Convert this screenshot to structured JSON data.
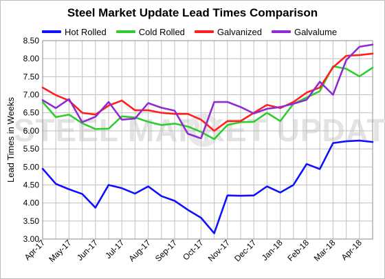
{
  "chart_data": {
    "type": "line",
    "title": "Steel Market Update Lead Times Comparison",
    "xlabel": "",
    "ylabel": "Lead Times in Weeks",
    "ylim": [
      3.0,
      8.5
    ],
    "yticks": [
      "3.00",
      "3.50",
      "4.00",
      "4.50",
      "5.00",
      "5.50",
      "6.00",
      "6.50",
      "7.00",
      "7.50",
      "8.00",
      "8.50"
    ],
    "xticks": [
      "Apr-17",
      "May-17",
      "Jun-17",
      "Jul-17",
      "Aug-17",
      "Sep-17",
      "Oct-17",
      "Nov-17",
      "Dec-17",
      "Jan-18",
      "Feb-18",
      "Mar-18",
      "Apr-18"
    ],
    "grid": true,
    "legend_position": "top",
    "watermark": "STEEL MARKET UPDATE",
    "series": [
      {
        "name": "Hot Rolled",
        "color": "#1010ff",
        "values": [
          4.95,
          4.53,
          4.38,
          4.25,
          3.87,
          4.5,
          4.41,
          4.26,
          4.46,
          4.19,
          4.06,
          3.81,
          3.59,
          3.16,
          4.21,
          4.2,
          4.21,
          4.46,
          4.29,
          4.5,
          5.08,
          4.94,
          5.66,
          5.71,
          5.73,
          5.69
        ]
      },
      {
        "name": "Cold Rolled",
        "color": "#2ecc2e",
        "values": [
          6.8,
          6.38,
          6.45,
          6.21,
          6.05,
          6.06,
          6.4,
          6.37,
          6.25,
          6.16,
          6.2,
          6.12,
          5.97,
          5.77,
          6.16,
          6.24,
          6.25,
          6.5,
          6.27,
          6.75,
          6.92,
          7.1,
          7.79,
          7.72,
          7.51,
          7.75
        ]
      },
      {
        "name": "Galvanized",
        "color": "#ff1f1f",
        "values": [
          7.2,
          6.99,
          6.84,
          6.5,
          6.45,
          6.7,
          6.84,
          6.57,
          6.57,
          6.5,
          6.47,
          6.47,
          6.31,
          6.0,
          6.27,
          6.27,
          6.5,
          6.72,
          6.63,
          6.8,
          7.06,
          7.2,
          7.76,
          8.08,
          8.1,
          8.14
        ]
      },
      {
        "name": "Galvalume",
        "color": "#8e2bd3",
        "values": [
          6.85,
          6.63,
          6.88,
          6.24,
          6.39,
          6.8,
          6.31,
          6.34,
          6.77,
          6.64,
          6.56,
          5.92,
          5.79,
          6.8,
          6.8,
          6.66,
          6.48,
          6.61,
          6.66,
          6.75,
          6.86,
          7.36,
          7.0,
          7.96,
          8.33,
          8.39
        ]
      }
    ]
  }
}
